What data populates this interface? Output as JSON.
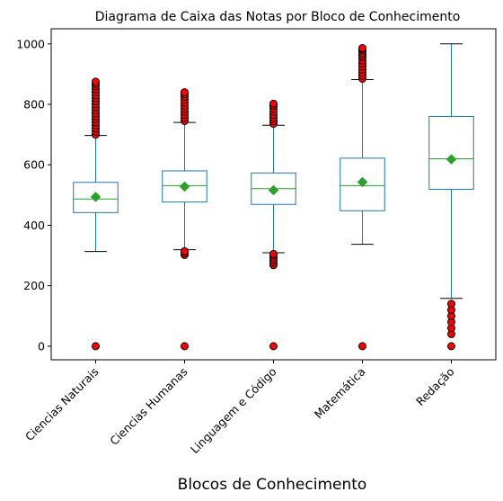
{
  "chart_data": {
    "type": "box",
    "title": "Diagrama de Caixa das Notas por Bloco de Conhecimento",
    "xlabel": "Blocos de Conhecimento",
    "ylabel": "",
    "ylim": [
      -45,
      1050
    ],
    "yticks": [
      0,
      200,
      400,
      600,
      800,
      1000
    ],
    "categories": [
      "Ciencias Naturais",
      "Ciencias Humanas",
      "Linguagem e Código",
      "Matemática",
      "Redação"
    ],
    "boxes": [
      {
        "category": "Ciencias Naturais",
        "whisker_low": 313,
        "q1": 442,
        "median": 487,
        "q3": 542,
        "whisker_high": 697,
        "mean": 494,
        "outliers": [
          0,
          700,
          710,
          720,
          730,
          740,
          750,
          760,
          770,
          780,
          790,
          800,
          810,
          820,
          830,
          840,
          850,
          860,
          868,
          875
        ]
      },
      {
        "category": "Ciencias Humanas",
        "whisker_low": 319,
        "q1": 477,
        "median": 531,
        "q3": 580,
        "whisker_high": 740,
        "mean": 528,
        "outliers": [
          0,
          302,
          308,
          314,
          745,
          755,
          765,
          775,
          785,
          795,
          805,
          815,
          825,
          833,
          840
        ]
      },
      {
        "category": "Linguagem e Código",
        "whisker_low": 309,
        "q1": 469,
        "median": 521,
        "q3": 573,
        "whisker_high": 731,
        "mean": 516,
        "outliers": [
          0,
          268,
          276,
          284,
          292,
          300,
          305,
          736,
          745,
          755,
          765,
          775,
          785,
          795,
          802
        ]
      },
      {
        "category": "Matemática",
        "whisker_low": 337,
        "q1": 448,
        "median": 531,
        "q3": 622,
        "whisker_high": 882,
        "mean": 543,
        "outliers": [
          0,
          885,
          895,
          905,
          915,
          925,
          935,
          945,
          955,
          962,
          970,
          977,
          983,
          986
        ]
      },
      {
        "category": "Redação",
        "whisker_low": 158,
        "q1": 519,
        "median": 620,
        "q3": 760,
        "whisker_high": 1000,
        "mean": 618,
        "outliers": [
          0,
          40,
          60,
          80,
          100,
          120,
          140
        ]
      }
    ],
    "colors": {
      "box": "#1f77b4",
      "median": "#2ca02c",
      "mean": "#2ca02c",
      "outlier_face": "#ff0000",
      "outlier_edge": "#000000"
    },
    "grid": false,
    "legend": "none"
  }
}
